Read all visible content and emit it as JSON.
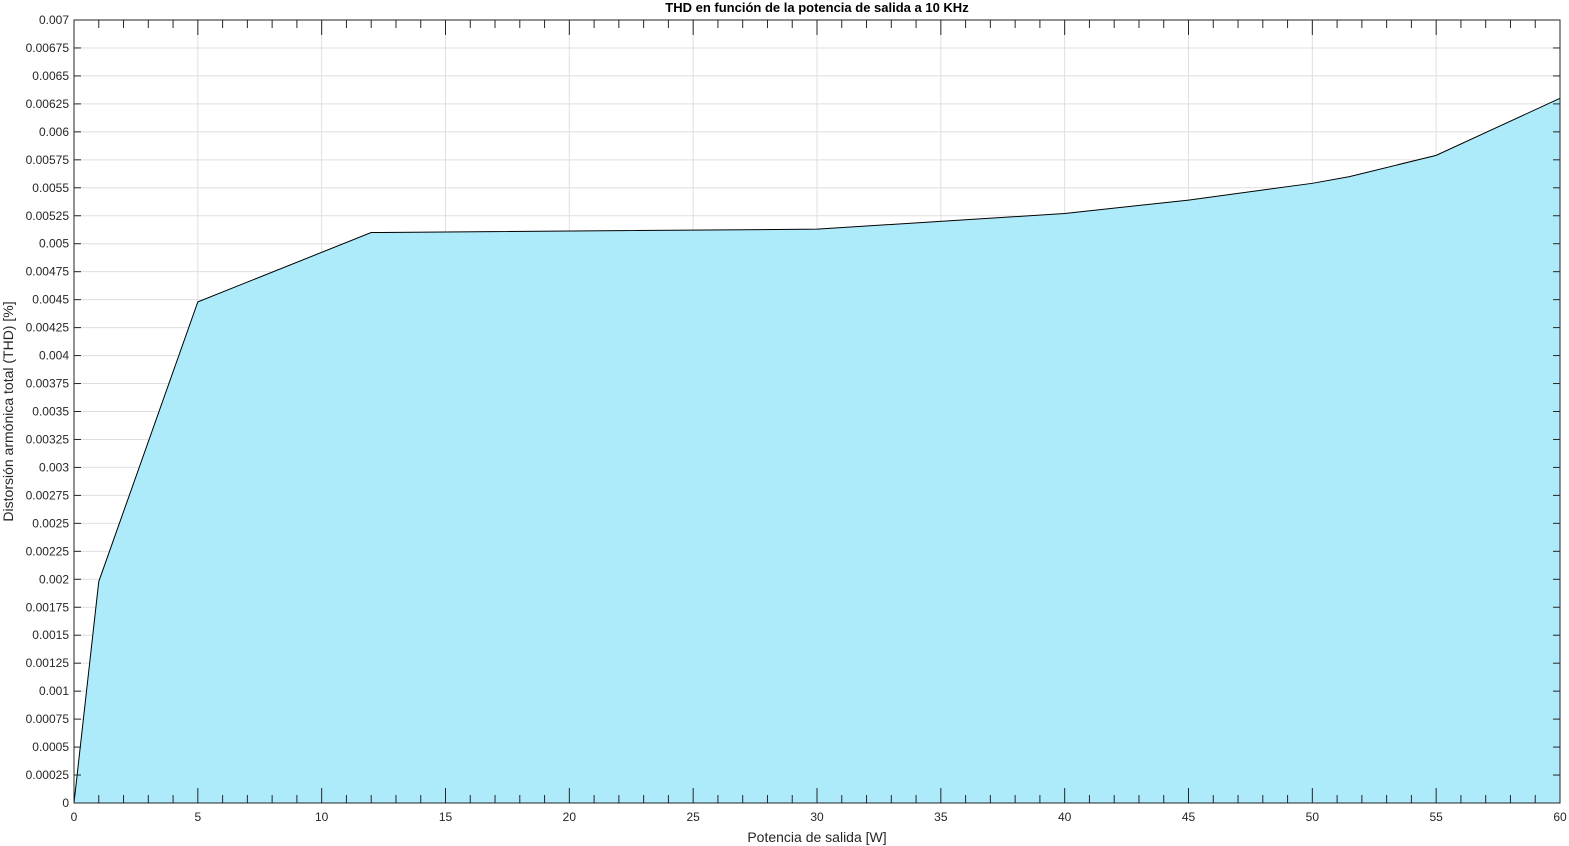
{
  "chart_data": {
    "type": "area",
    "title": "THD en función de la potencia de salida a 10 KHz",
    "xlabel": "Potencia de salida [W]",
    "ylabel": "Distorsión armónica total (THD) [%]",
    "xlim": [
      0,
      60
    ],
    "ylim": [
      0,
      0.007
    ],
    "grid": true,
    "x_ticks": [
      0,
      5,
      10,
      15,
      20,
      25,
      30,
      35,
      40,
      45,
      50,
      55,
      60
    ],
    "x_tick_labels": [
      "0",
      "5",
      "10",
      "15",
      "20",
      "25",
      "30",
      "35",
      "40",
      "45",
      "50",
      "55",
      "60"
    ],
    "x_minor_step": 1,
    "y_ticks": [
      0,
      0.00025,
      0.0005,
      0.00075,
      0.001,
      0.00125,
      0.0015,
      0.00175,
      0.002,
      0.00225,
      0.0025,
      0.00275,
      0.003,
      0.00325,
      0.0035,
      0.00375,
      0.004,
      0.00425,
      0.0045,
      0.00475,
      0.005,
      0.00525,
      0.0055,
      0.00575,
      0.006,
      0.00625,
      0.0065,
      0.00675,
      0.007
    ],
    "y_tick_labels": [
      "0",
      "0.00025",
      "0.0005",
      "0.00075",
      "0.001",
      "0.00125",
      "0.0015",
      "0.00175",
      "0.002",
      "0.00225",
      "0.0025",
      "0.00275",
      "0.003",
      "0.00325",
      "0.0035",
      "0.00375",
      "0.004",
      "0.00425",
      "0.0045",
      "0.00475",
      "0.005",
      "0.00525",
      "0.0055",
      "0.00575",
      "0.006",
      "0.00625",
      "0.0065",
      "0.00675",
      "0.007"
    ],
    "x": [
      0,
      1,
      5,
      12,
      30,
      40,
      45,
      50,
      51.5,
      55,
      60
    ],
    "y": [
      0,
      0.00198,
      0.00448,
      0.0051,
      0.00513,
      0.00527,
      0.00539,
      0.00554,
      0.0056,
      0.00579,
      0.0063
    ],
    "fill_color": "#adebfb",
    "line_color": "#000000",
    "grid_color": "#dfdfdf",
    "axis_color": "#262626"
  }
}
